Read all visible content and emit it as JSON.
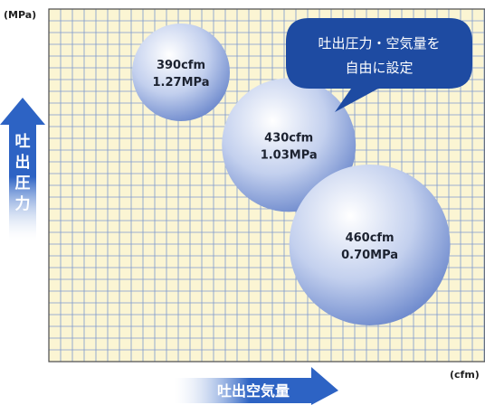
{
  "chart_data": {
    "type": "scatter",
    "xlabel": "吐出空気量",
    "ylabel": "吐出圧力",
    "x_unit": "(cfm)",
    "y_unit": "(MPa)",
    "grid": true,
    "points": [
      {
        "x": 390,
        "y": 1.27,
        "label_flow": "390cfm",
        "label_pressure": "1.27MPa"
      },
      {
        "x": 430,
        "y": 1.03,
        "label_flow": "430cfm",
        "label_pressure": "1.03MPa"
      },
      {
        "x": 460,
        "y": 0.7,
        "label_flow": "460cfm",
        "label_pressure": "0.70MPa"
      }
    ],
    "callout": {
      "line1": "吐出圧力・空気量を",
      "line2": "自由に設定"
    },
    "colors": {
      "grid_background": "#fbf5d3",
      "grid_line": "#7c98cf",
      "bubble_light": "#ffffff",
      "bubble_dark": "#6e8acd",
      "callout_fill": "#1e4ba2",
      "arrow_fill": "#2d63c4"
    }
  }
}
